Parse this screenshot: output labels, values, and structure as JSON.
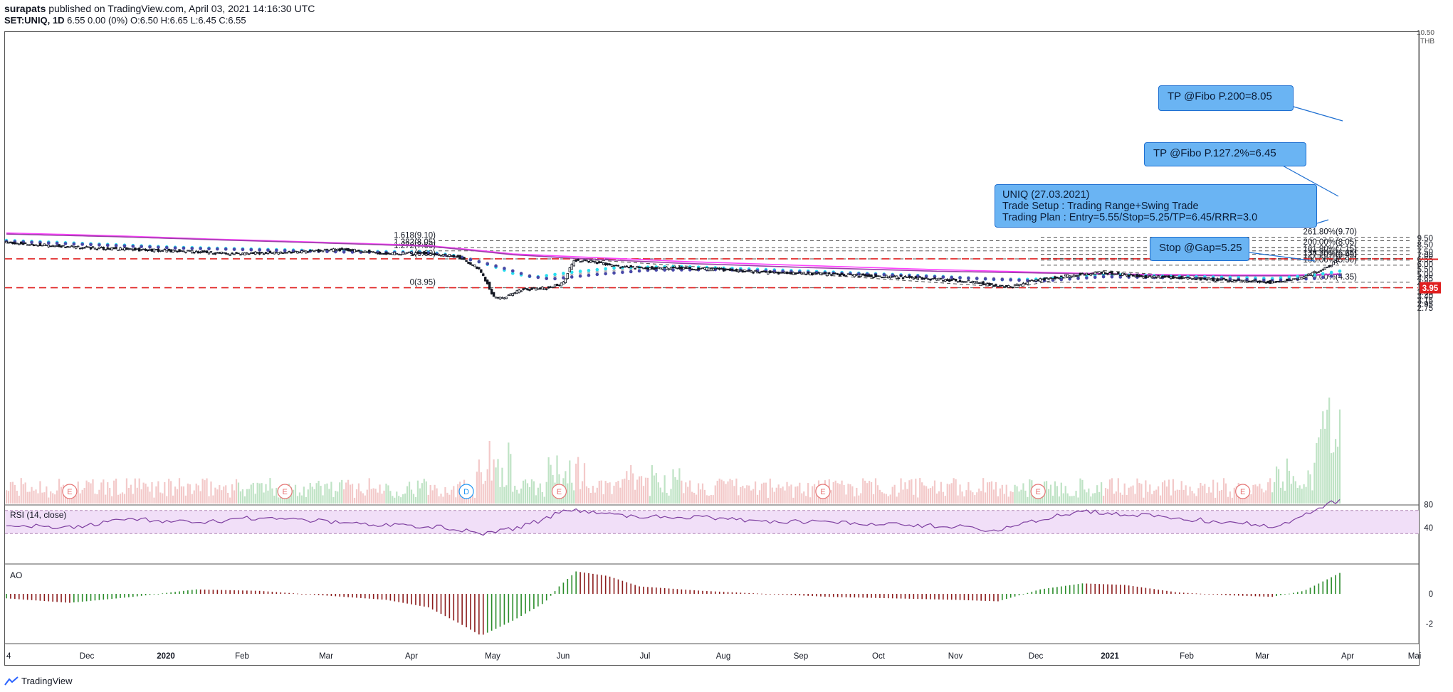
{
  "header": {
    "author": "surapats",
    "published": "published on TradingView.com, April 03, 2021 14:16:30 UTC",
    "symbol": "SET:UNIQ, 1D",
    "ohlc": "6.55 0.00 (0%) O:6.50 H:6.65 L:6.45 C:6.55"
  },
  "footer": {
    "brand": "TradingView"
  },
  "colors": {
    "up": "#26a69a",
    "down": "#131722",
    "magenta": "#ff40ff",
    "purple": "#9c3fa8",
    "cyan": "#29e0f0",
    "navy": "#4848a8",
    "grey": "#bdbdbd",
    "red": "#e02020",
    "callout": "#6ab4f3",
    "rsi_band": "#f1dff8",
    "ao_up": "#2a8c2a",
    "ao_down": "#8c1c1c"
  },
  "annotations": {
    "tp200": "TP @Fibo P.200=8.05",
    "tp127": "TP @Fibo P.127.2%=6.45",
    "plan_title": "UNIQ (27.03.2021)",
    "plan_setup": "Trade Setup : Trading Range+Swing Trade",
    "plan_entry": "Trading Plan : Entry=5.55/Stop=5.25/TP=6.45/RRR=3.0",
    "stop": "Stop @Gap=5.25"
  },
  "chart_data": [
    {
      "type": "candlestick",
      "y_axis": {
        "ticks": [
          10.5,
          9.5,
          8.5,
          7.5,
          7.0,
          6.55,
          6.0,
          5.5,
          5.0,
          4.65,
          4.25,
          3.65,
          3.4,
          3.15,
          2.95,
          2.75
        ],
        "currency": "THB",
        "top_label": "10.50",
        "tick_labels": [
          "9.50",
          "8.50",
          "7.50",
          "7.00",
          "6.55",
          "6.00",
          "5.50",
          "5.00",
          "4.65",
          "4.25",
          "3.65",
          "3.40",
          "3.15",
          "2.95",
          "2.75"
        ],
        "highlight_label": "3.95"
      },
      "x_axis": {
        "labels": [
          "4",
          "Dec",
          "2020",
          "Feb",
          "Mar",
          "Apr",
          "May",
          "Jun",
          "Jul",
          "Aug",
          "Sep",
          "Oct",
          "Nov",
          "Dec",
          "2021",
          "Feb",
          "Mar",
          "Apr",
          "Mai"
        ],
        "bold": [
          "2020",
          "2021"
        ]
      },
      "price_path": [
        [
          0,
          8.8
        ],
        [
          40,
          8.0
        ],
        [
          80,
          7.6
        ],
        [
          110,
          7.2
        ],
        [
          140,
          7.5
        ],
        [
          160,
          7.8
        ],
        [
          180,
          7.3
        ],
        [
          200,
          7.3
        ],
        [
          215,
          6.9
        ],
        [
          225,
          5.5
        ],
        [
          232,
          3.3
        ],
        [
          238,
          3.35
        ],
        [
          245,
          3.8
        ],
        [
          258,
          3.95
        ],
        [
          265,
          4.3
        ],
        [
          270,
          6.4
        ],
        [
          278,
          6.3
        ],
        [
          290,
          5.75
        ],
        [
          305,
          5.6
        ],
        [
          320,
          5.6
        ],
        [
          335,
          5.5
        ],
        [
          345,
          5.35
        ],
        [
          360,
          5.2
        ],
        [
          380,
          5.1
        ],
        [
          400,
          4.95
        ],
        [
          420,
          4.8
        ],
        [
          440,
          4.6
        ],
        [
          458,
          4.4
        ],
        [
          470,
          4.1
        ],
        [
          478,
          4.05
        ],
        [
          488,
          4.5
        ],
        [
          500,
          4.8
        ],
        [
          510,
          5.0
        ],
        [
          520,
          5.15
        ],
        [
          530,
          5.0
        ],
        [
          540,
          4.8
        ],
        [
          555,
          4.75
        ],
        [
          570,
          4.6
        ],
        [
          585,
          4.5
        ],
        [
          600,
          4.35
        ],
        [
          608,
          4.55
        ],
        [
          615,
          4.75
        ],
        [
          620,
          5.1
        ],
        [
          624,
          5.35
        ],
        [
          628,
          5.8
        ],
        [
          632,
          6.55
        ]
      ],
      "ema_fast_cyan": [
        [
          0,
          9.15
        ],
        [
          80,
          8.1
        ],
        [
          160,
          7.55
        ],
        [
          200,
          7.45
        ],
        [
          212,
          7.0
        ],
        [
          225,
          6.2
        ],
        [
          240,
          5.1
        ],
        [
          250,
          4.75
        ],
        [
          270,
          5.25
        ],
        [
          290,
          5.65
        ],
        [
          320,
          5.75
        ],
        [
          360,
          5.45
        ],
        [
          400,
          5.15
        ],
        [
          440,
          4.85
        ],
        [
          470,
          4.55
        ],
        [
          490,
          4.6
        ],
        [
          520,
          5.0
        ],
        [
          550,
          4.85
        ],
        [
          580,
          4.75
        ],
        [
          600,
          4.65
        ],
        [
          620,
          4.95
        ],
        [
          632,
          5.3
        ]
      ],
      "ema_mid_grey": [
        [
          0,
          9.1
        ],
        [
          80,
          8.05
        ],
        [
          160,
          7.5
        ],
        [
          200,
          7.4
        ],
        [
          215,
          6.9
        ],
        [
          230,
          6.0
        ],
        [
          245,
          5.0
        ],
        [
          255,
          4.7
        ],
        [
          275,
          5.15
        ],
        [
          300,
          5.55
        ],
        [
          340,
          5.55
        ],
        [
          380,
          5.25
        ],
        [
          420,
          5.0
        ],
        [
          460,
          4.7
        ],
        [
          490,
          4.55
        ],
        [
          520,
          4.85
        ],
        [
          560,
          4.8
        ],
        [
          600,
          4.6
        ],
        [
          620,
          4.8
        ],
        [
          632,
          5.0
        ]
      ],
      "ema_slow_navy": [
        [
          0,
          9.0
        ],
        [
          80,
          8.0
        ],
        [
          160,
          7.45
        ],
        [
          200,
          7.35
        ],
        [
          215,
          6.8
        ],
        [
          232,
          5.8
        ],
        [
          248,
          4.85
        ],
        [
          258,
          4.6
        ],
        [
          280,
          5.0
        ],
        [
          305,
          5.4
        ],
        [
          340,
          5.45
        ],
        [
          380,
          5.2
        ],
        [
          420,
          4.95
        ],
        [
          460,
          4.65
        ],
        [
          490,
          4.45
        ],
        [
          520,
          4.8
        ],
        [
          560,
          4.7
        ],
        [
          600,
          4.5
        ],
        [
          620,
          4.65
        ],
        [
          632,
          4.95
        ]
      ],
      "ma_magenta": [
        [
          0,
          10.45
        ],
        [
          50,
          9.95
        ],
        [
          100,
          9.35
        ],
        [
          150,
          8.85
        ],
        [
          200,
          8.35
        ],
        [
          240,
          7.2
        ],
        [
          270,
          6.85
        ],
        [
          320,
          6.3
        ],
        [
          380,
          5.85
        ],
        [
          440,
          5.45
        ],
        [
          500,
          5.15
        ],
        [
          540,
          5.0
        ],
        [
          580,
          4.95
        ],
        [
          610,
          4.95
        ],
        [
          632,
          5.05
        ]
      ],
      "ma_purple": [
        [
          0,
          10.25
        ],
        [
          50,
          9.8
        ],
        [
          100,
          9.25
        ],
        [
          150,
          8.75
        ],
        [
          200,
          8.25
        ],
        [
          240,
          7.1
        ],
        [
          270,
          6.65
        ],
        [
          320,
          6.1
        ],
        [
          380,
          5.65
        ],
        [
          440,
          5.3
        ],
        [
          500,
          5.1
        ],
        [
          540,
          4.95
        ],
        [
          580,
          4.88
        ],
        [
          610,
          4.88
        ],
        [
          632,
          5.0
        ]
      ],
      "fib_left": [
        {
          "label": "1.618(9.10)",
          "value": 9.1
        },
        {
          "label": "1.382(8.05)",
          "value": 8.05
        },
        {
          "label": "1.272(7.60)",
          "value": 7.6
        },
        {
          "label": "1(6.60)",
          "value": 6.6
        },
        {
          "label": "0(3.95)",
          "value": 3.95
        }
      ],
      "fib_right": [
        {
          "label": "261.80%(9.70)",
          "value": 9.7
        },
        {
          "label": "200.00%(8.05)",
          "value": 8.05
        },
        {
          "label": "161.80%(7.15)",
          "value": 7.15
        },
        {
          "label": "138.20%(6.65)",
          "value": 6.65
        },
        {
          "label": "127.20%(6.45)",
          "value": 6.45
        },
        {
          "label": "100.00%(5.90)",
          "value": 5.9
        },
        {
          "label": "0.00%(4.35)",
          "value": 4.35
        }
      ],
      "red_levels": [
        6.6,
        3.95
      ],
      "current_price": 6.55,
      "earnings_markers": [
        {
          "t": 30,
          "label": "E"
        },
        {
          "t": 132,
          "label": "E"
        },
        {
          "t": 218,
          "label": "D"
        },
        {
          "t": 262,
          "label": "E"
        },
        {
          "t": 387,
          "label": "E"
        },
        {
          "t": 489,
          "label": "E"
        },
        {
          "t": 586,
          "label": "E"
        }
      ]
    },
    {
      "type": "line",
      "name": "RSI (14, close)",
      "ticks": [
        80,
        40
      ],
      "band": [
        70,
        30
      ],
      "values": [
        [
          0,
          45
        ],
        [
          30,
          40
        ],
        [
          60,
          55
        ],
        [
          90,
          48
        ],
        [
          120,
          58
        ],
        [
          150,
          52
        ],
        [
          180,
          45
        ],
        [
          205,
          42
        ],
        [
          225,
          30
        ],
        [
          240,
          38
        ],
        [
          255,
          55
        ],
        [
          265,
          72
        ],
        [
          280,
          66
        ],
        [
          300,
          60
        ],
        [
          330,
          58
        ],
        [
          360,
          52
        ],
        [
          390,
          50
        ],
        [
          420,
          45
        ],
        [
          450,
          42
        ],
        [
          470,
          35
        ],
        [
          490,
          55
        ],
        [
          510,
          68
        ],
        [
          530,
          64
        ],
        [
          560,
          55
        ],
        [
          585,
          48
        ],
        [
          600,
          42
        ],
        [
          615,
          60
        ],
        [
          625,
          80
        ],
        [
          632,
          88
        ]
      ]
    },
    {
      "type": "bar",
      "name": "AO",
      "ticks": [
        0,
        -2
      ],
      "values": [
        [
          0,
          -0.3
        ],
        [
          30,
          -0.6
        ],
        [
          60,
          -0.2
        ],
        [
          90,
          0.3
        ],
        [
          120,
          0.2
        ],
        [
          150,
          -0.1
        ],
        [
          180,
          -0.4
        ],
        [
          200,
          -0.9
        ],
        [
          215,
          -2.0
        ],
        [
          225,
          -2.8
        ],
        [
          240,
          -1.8
        ],
        [
          255,
          -0.6
        ],
        [
          262,
          0.5
        ],
        [
          270,
          1.5
        ],
        [
          285,
          1.2
        ],
        [
          300,
          0.5
        ],
        [
          330,
          0.2
        ],
        [
          360,
          0.0
        ],
        [
          390,
          -0.2
        ],
        [
          420,
          -0.3
        ],
        [
          450,
          -0.4
        ],
        [
          470,
          -0.5
        ],
        [
          490,
          0.3
        ],
        [
          510,
          0.7
        ],
        [
          530,
          0.6
        ],
        [
          555,
          0.1
        ],
        [
          580,
          -0.1
        ],
        [
          600,
          -0.2
        ],
        [
          615,
          0.2
        ],
        [
          625,
          0.9
        ],
        [
          632,
          1.4
        ]
      ]
    }
  ]
}
